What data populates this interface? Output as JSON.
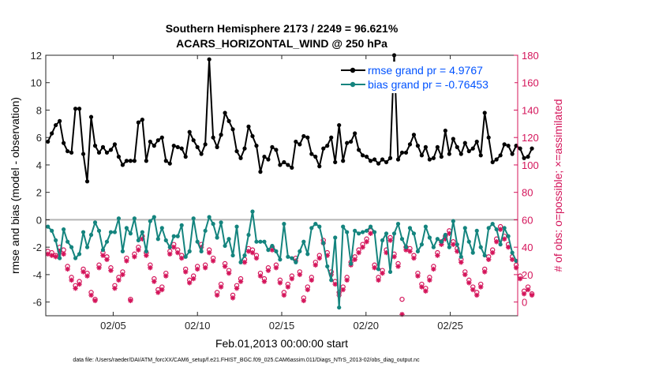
{
  "chart_data": {
    "type": "line",
    "title_lines": [
      "Southern Hemisphere 2173 / 2249 = 96.621%",
      "ACARS_HORIZONTAL_WIND @ 250 hPa"
    ],
    "xlabel": "Feb.01,2013 00:00:00 start",
    "ylabel_left": "rmse and bias (model - observation)",
    "ylabel_right": "# of obs: o=possible; ×=assimilated",
    "footer": "data file: /Users/raeder/DAI/ATM_forcXX/CAM6_setup/f.e21.FHIST_BGC.f09_025.CAM6assim.011/Diags_NTrS_2013-02/obs_diag_output.nc",
    "xlim": [
      1.0,
      29.0
    ],
    "ylim_left": [
      -7,
      12
    ],
    "ylim_right": [
      -10,
      180
    ],
    "x_ticks": [
      5,
      10,
      15,
      20,
      25
    ],
    "x_tick_labels": [
      "02/05",
      "02/10",
      "02/15",
      "02/20",
      "02/25"
    ],
    "y_ticks_left": [
      -6,
      -4,
      -2,
      0,
      2,
      4,
      6,
      8,
      10,
      12
    ],
    "y_tick_labels_left": [
      "-6",
      "-4",
      "-2",
      "0",
      "2",
      "4",
      "6",
      "8",
      "10",
      "12"
    ],
    "y_ticks_right": [
      0,
      20,
      40,
      60,
      80,
      100,
      120,
      140,
      160,
      180
    ],
    "y_tick_labels_right": [
      "0",
      "20",
      "40",
      "60",
      "80",
      "100",
      "120",
      "140",
      "160",
      "180"
    ],
    "colors": {
      "rmse": "#000000",
      "bias": "#14847e",
      "obs": "#d4145a",
      "zero_line": "#b4b4b4",
      "legend_text": "#0052ff",
      "right_axis": "#d4145a"
    },
    "series": [
      {
        "name": "rmse grand pr = 4.9767",
        "values": [
          5.7,
          6.3,
          6.9,
          7.2,
          5.6,
          5.0,
          4.9,
          8.1,
          8.1,
          4.8,
          2.8,
          7.5,
          5.4,
          4.9,
          5.3,
          4.9,
          5.1,
          5.5,
          4.6,
          4.0,
          4.3,
          4.3,
          4.3,
          7.1,
          7.3,
          4.3,
          5.7,
          5.4,
          5.8,
          6.0,
          4.3,
          4.1,
          5.4,
          5.3,
          5.2,
          4.6,
          6.4,
          5.8,
          5.3,
          4.8,
          5.5,
          11.7,
          6.0,
          5.3,
          6.2,
          7.8,
          7.2,
          6.6,
          5.0,
          4.5,
          5.2,
          6.8,
          6.1,
          5.4,
          3.5,
          4.6,
          4.4,
          5.3,
          5.1,
          4.0,
          4.2,
          4.0,
          3.8,
          5.7,
          5.5,
          6.1,
          6.0,
          4.8,
          4.6,
          3.9,
          5.2,
          5.4,
          6.0,
          4.2,
          6.9,
          4.3,
          5.6,
          5.7,
          6.3,
          5.1,
          4.7,
          4.6,
          4.3,
          4.4,
          4.1,
          4.4,
          4.2,
          4.5,
          12.0,
          4.4,
          4.9,
          4.9,
          5.5,
          6.2,
          5.4,
          4.7,
          5.3,
          4.4,
          4.5,
          5.3,
          4.6,
          6.5,
          4.8,
          5.9,
          5.3,
          4.8,
          5.6,
          5.0,
          5.2,
          5.7,
          4.7,
          7.8,
          6.0,
          4.2,
          4.4,
          4.7,
          5.5,
          5.4,
          4.8,
          5.4,
          5.2,
          4.5,
          4.6,
          5.2
        ],
        "color": "#000000"
      },
      {
        "name": "bias grand pr = -0.76453",
        "values": [
          -0.5,
          -0.8,
          -1.5,
          -2.8,
          -0.7,
          -1.6,
          -2.0,
          -2.8,
          -2.5,
          -0.9,
          -2.0,
          -1.1,
          -0.2,
          -0.8,
          -2.2,
          -1.6,
          -0.9,
          -0.9,
          0.1,
          -2.3,
          -0.6,
          -1.0,
          0.1,
          -1.5,
          -0.9,
          -2.3,
          -0.1,
          0.2,
          -1.4,
          -0.6,
          -1.5,
          -2.0,
          -1.2,
          -1.2,
          -0.4,
          -2.7,
          -2.3,
          0.1,
          -1.6,
          -2.3,
          -0.8,
          0.2,
          -0.3,
          -1.3,
          -0.2,
          -1.9,
          -1.4,
          -2.6,
          -0.5,
          -3.1,
          -2.6,
          -1.1,
          0.6,
          -1.6,
          -1.6,
          -1.6,
          -2.2,
          -1.9,
          -2.3,
          -2.9,
          -0.3,
          -2.7,
          -2.8,
          -3.1,
          -2.3,
          -1.6,
          -2.5,
          -0.6,
          -0.3,
          -0.5,
          -1.7,
          -3.4,
          -4.4,
          -1.3,
          -6.4,
          -0.5,
          -0.9,
          -3.2,
          -0.8,
          -1.0,
          -0.9,
          -0.8,
          -0.5,
          -0.9,
          -3.6,
          -1.5,
          -1.0,
          -3.8,
          -1.0,
          -0.3,
          -1.4,
          -2.0,
          -0.6,
          -1.0,
          -2.3,
          -1.8,
          -0.5,
          -1.3,
          -2.0,
          -1.4,
          -1.6,
          -1.1,
          -2.0,
          -0.1,
          -1.8,
          -2.7,
          -0.6,
          -1.6,
          -2.4,
          -0.8,
          -2.0,
          -2.6,
          -0.6,
          -0.3,
          -0.7,
          -1.8,
          -0.6,
          -1.2,
          -2.4,
          -3.0
        ],
        "color": "#14847e"
      },
      {
        "name": "possible observations",
        "values": [
          37,
          36,
          34,
          40,
          38,
          26,
          18,
          12,
          15,
          24,
          21,
          7,
          2,
          27,
          36,
          33,
          25,
          12,
          18,
          22,
          32,
          2,
          35,
          40,
          48,
          36,
          27,
          17,
          9,
          11,
          21,
          37,
          42,
          38,
          34,
          24,
          16,
          19,
          26,
          42,
          27,
          38,
          32,
          7,
          13,
          28,
          23,
          5,
          12,
          17,
          31,
          39,
          38,
          34,
          21,
          17,
          25,
          40,
          27,
          16,
          7,
          13,
          19,
          32,
          22,
          3,
          11,
          18,
          29,
          34,
          45,
          36,
          22,
          15,
          7,
          11,
          18,
          29,
          33,
          38,
          42,
          46,
          52,
          27,
          18,
          23,
          38,
          47,
          35,
          28,
          2,
          40,
          39,
          34,
          21,
          13,
          10,
          18,
          26,
          36,
          44,
          48,
          52,
          44,
          39,
          31,
          22,
          16,
          11,
          7,
          13,
          24,
          33,
          38,
          46,
          55,
          48,
          42,
          33,
          27,
          19,
          8,
          11,
          6
        ],
        "color": "#d4145a"
      },
      {
        "name": "assimilated observations",
        "values": [
          35,
          34,
          33,
          37,
          35,
          24,
          16,
          10,
          13,
          22,
          19,
          5,
          1,
          25,
          34,
          31,
          23,
          10,
          16,
          20,
          30,
          1,
          33,
          38,
          46,
          34,
          25,
          15,
          7,
          9,
          19,
          35,
          40,
          36,
          32,
          22,
          14,
          17,
          24,
          40,
          25,
          36,
          30,
          5,
          11,
          26,
          21,
          3,
          10,
          15,
          29,
          37,
          36,
          32,
          19,
          15,
          23,
          38,
          25,
          14,
          5,
          11,
          17,
          30,
          20,
          1,
          9,
          16,
          27,
          32,
          43,
          34,
          20,
          13,
          5,
          9,
          16,
          27,
          31,
          36,
          40,
          44,
          50,
          25,
          16,
          21,
          36,
          45,
          33,
          26,
          -9,
          38,
          37,
          32,
          19,
          11,
          8,
          16,
          24,
          34,
          42,
          46,
          50,
          42,
          37,
          29,
          20,
          14,
          9,
          5,
          11,
          22,
          31,
          36,
          44,
          53,
          46,
          40,
          31,
          25,
          17,
          6,
          9,
          5
        ],
        "color": "#d4145a"
      }
    ],
    "legend": {
      "placement": "top-right",
      "entries": [
        "rmse grand pr = 4.9767",
        "bias grand pr = -0.76453"
      ]
    }
  }
}
